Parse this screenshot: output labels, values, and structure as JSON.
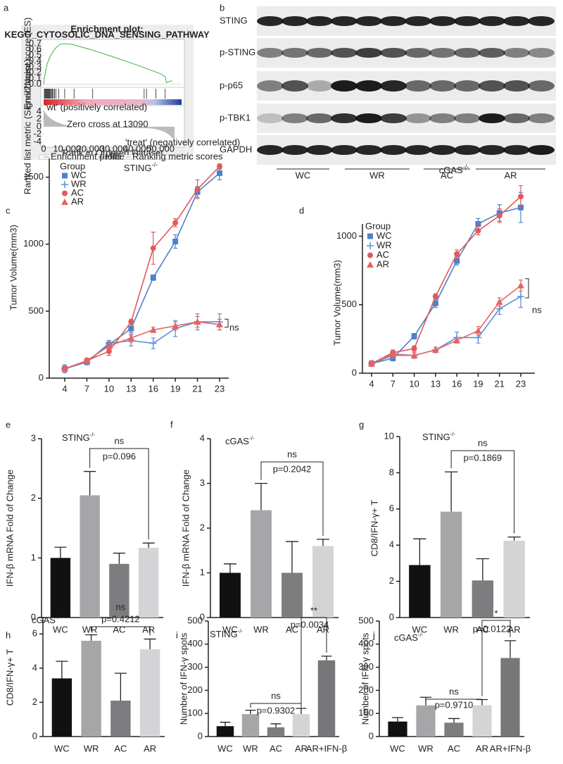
{
  "panel_letters": [
    "a",
    "b",
    "c",
    "d",
    "e",
    "f",
    "g",
    "h",
    "i",
    "j"
  ],
  "blot": {
    "rows": [
      "STING",
      "p-STING",
      "p-p65",
      "p-TBK1",
      "GAPDH"
    ],
    "groups": [
      "WC",
      "WR",
      "AC",
      "AR"
    ]
  },
  "chart_data": [
    {
      "type": "gsea",
      "title": "Enrichment plot:",
      "subtitle": "KEGG_CYTOSOLIC_DNA_SENSING_PATHWAY",
      "ylabel": "Enrichment score (ES)",
      "y2label": "Ranked list metric (Signal2Noise)",
      "xlabel": "Rank in Ordered Dataset",
      "x": [
        0,
        500,
        1500,
        3000,
        5000,
        7000,
        9000,
        12000,
        20000,
        30000,
        40000,
        50000,
        52000,
        52500,
        55000
      ],
      "values": [
        0,
        0.15,
        0.35,
        0.5,
        0.62,
        0.69,
        0.7,
        0.69,
        0.6,
        0.47,
        0.33,
        0.18,
        0.13,
        0.03,
        0.06
      ],
      "color": "#3cb43c",
      "hits": [
        300,
        600,
        900,
        1200,
        1500,
        1800,
        2100,
        2400,
        2700,
        3000,
        3400,
        3800,
        4200,
        4700,
        5200,
        6500,
        9000,
        13000,
        21000,
        43000,
        44000,
        48000,
        52000
      ],
      "xlim": [
        0,
        59000
      ],
      "xticks": [
        0,
        {
          "value": 10000,
          "label": "10,000"
        },
        {
          "value": 20000,
          "label": "20,000"
        },
        {
          "value": 30000,
          "label": "30,000"
        },
        {
          "value": 40000,
          "label": "40,000"
        },
        {
          "value": 50000,
          "label": "50,000"
        }
      ],
      "ylim": [
        -0.03,
        0.75
      ],
      "yticks": [
        {
          "value": 0,
          "label": "0.0"
        },
        0.1,
        0.2,
        0.3,
        0.4,
        0.5,
        0.6,
        0.7
      ],
      "y2lim": [
        -5,
        5
      ],
      "y2ticks": [
        4,
        2,
        0,
        -2,
        -4
      ],
      "annotations": [
        "'wt' (positively correlated)",
        "Zero cross at 13090",
        "'treat' (negatively correlated)"
      ],
      "legend": [
        "Enrichment profile",
        "Hits",
        "Ranking metric scores"
      ]
    },
    {
      "type": "line",
      "title": "STING",
      "title_superscript": "-/-",
      "ylabel": "Tumor Volume(mm3)",
      "legend_title": "Group",
      "categories": [
        "4",
        "7",
        "10",
        "13",
        "16",
        "19",
        "21",
        "23"
      ],
      "series": [
        {
          "name": "WC",
          "color": "#4f81c7",
          "marker": "square",
          "values": [
            70,
            120,
            250,
            370,
            750,
            1020,
            1390,
            1530
          ],
          "errors": [
            20,
            20,
            30,
            30,
            20,
            50,
            40,
            50
          ]
        },
        {
          "name": "WR",
          "color": "#5b8fd6",
          "marker": "plus",
          "values": [
            70,
            120,
            260,
            280,
            260,
            370,
            420,
            420
          ],
          "errors": [
            30,
            20,
            20,
            40,
            40,
            60,
            60,
            60
          ]
        },
        {
          "name": "AC",
          "color": "#e05a5a",
          "marker": "circle",
          "values": [
            70,
            130,
            200,
            420,
            970,
            1160,
            1410,
            1580
          ],
          "errors": [
            20,
            20,
            30,
            20,
            120,
            30,
            70,
            20
          ]
        },
        {
          "name": "AR",
          "color": "#e46464",
          "marker": "triangle",
          "values": [
            70,
            130,
            240,
            300,
            360,
            390,
            420,
            400
          ],
          "errors": [
            20,
            20,
            30,
            30,
            20,
            30,
            40,
            40
          ]
        }
      ],
      "ylim": [
        0,
        1640
      ],
      "yticks": [
        0,
        500,
        1000,
        1500
      ],
      "annotations": [
        "ns"
      ]
    },
    {
      "type": "line",
      "title": "cGAS",
      "title_superscript": "-/-",
      "ylabel": "Tumor Volume(mm3)",
      "legend_title": "Group",
      "categories": [
        "4",
        "7",
        "10",
        "13",
        "16",
        "19",
        "21",
        "23"
      ],
      "series": [
        {
          "name": "WC",
          "color": "#4f81c7",
          "marker": "square",
          "values": [
            70,
            110,
            270,
            510,
            820,
            1090,
            1170,
            1210
          ],
          "errors": [
            20,
            20,
            20,
            30,
            30,
            40,
            60,
            110
          ]
        },
        {
          "name": "WR",
          "color": "#5b8fd6",
          "marker": "plus",
          "values": [
            70,
            130,
            130,
            170,
            260,
            260,
            470,
            560
          ],
          "errors": [
            20,
            20,
            20,
            20,
            40,
            40,
            40,
            80
          ]
        },
        {
          "name": "AC",
          "color": "#e05a5a",
          "marker": "circle",
          "values": [
            70,
            150,
            180,
            560,
            870,
            1040,
            1150,
            1290
          ],
          "errors": [
            20,
            20,
            20,
            20,
            30,
            30,
            50,
            80
          ]
        },
        {
          "name": "AR",
          "color": "#e46464",
          "marker": "triangle",
          "values": [
            70,
            140,
            130,
            170,
            240,
            310,
            520,
            640
          ],
          "errors": [
            20,
            20,
            20,
            20,
            20,
            30,
            30,
            40
          ]
        }
      ],
      "ylim": [
        0,
        1090
      ],
      "yticks": [
        0,
        500,
        1000
      ],
      "annotations": [
        "ns"
      ]
    },
    {
      "type": "bar",
      "title": "STING",
      "title_superscript": "-/-",
      "ylabel": "IFN-β mRNA Fold of Change",
      "categories": [
        "WC",
        "WR",
        "AC",
        "AR"
      ],
      "values": [
        1.0,
        2.05,
        0.9,
        1.17
      ],
      "errors": [
        0.18,
        0.4,
        0.18,
        0.08
      ],
      "colors": [
        "#111111",
        "#a6a6a8",
        "#7d7d80",
        "#d4d4d6"
      ],
      "ylim": [
        0,
        3
      ],
      "yticks": [
        0,
        1,
        2,
        3
      ],
      "annotations": [
        "ns",
        "p=0.096"
      ]
    },
    {
      "type": "bar",
      "title": "cGAS",
      "title_superscript": "-/-",
      "ylabel": "IFN-β mRNA Fold of Change",
      "categories": [
        "WC",
        "WR",
        "AC",
        "AR"
      ],
      "values": [
        1.0,
        2.4,
        1.0,
        1.6
      ],
      "errors": [
        0.2,
        0.6,
        0.7,
        0.15
      ],
      "colors": [
        "#111111",
        "#a6a6a8",
        "#7d7d80",
        "#d4d4d6"
      ],
      "ylim": [
        0,
        4
      ],
      "yticks": [
        0,
        1,
        2,
        3,
        4
      ],
      "annotations": [
        "ns",
        "p=0.2042"
      ]
    },
    {
      "type": "bar",
      "title": "STING",
      "title_superscript": "-/-",
      "ylabel": "CD8/IFN-γ+ T",
      "categories": [
        "WC",
        "WR",
        "AC",
        "AR"
      ],
      "values": [
        2.9,
        5.85,
        2.05,
        4.25
      ],
      "errors": [
        1.45,
        2.2,
        1.2,
        0.2
      ],
      "colors": [
        "#111111",
        "#a6a6a8",
        "#7d7d80",
        "#d4d4d6"
      ],
      "ylim": [
        0,
        10
      ],
      "yticks": [
        0,
        2,
        4,
        6,
        8,
        10
      ],
      "annotations": [
        "ns",
        "p=0.1869"
      ]
    },
    {
      "type": "bar",
      "title": "cGAS",
      "title_superscript": "-/-",
      "ylabel": "CD8/IFN-γ+ T",
      "categories": [
        "WC",
        "WR",
        "AC",
        "AR"
      ],
      "values": [
        3.4,
        5.6,
        2.1,
        5.1
      ],
      "errors": [
        1.0,
        0.35,
        1.6,
        0.6
      ],
      "colors": [
        "#111111",
        "#a6a6a8",
        "#7d7d80",
        "#d4d4d6"
      ],
      "ylim": [
        0,
        7
      ],
      "yticks": [
        0,
        2,
        4,
        6
      ],
      "annotations": [
        "ns",
        "p=0.4212"
      ]
    },
    {
      "type": "bar",
      "title": "STING",
      "title_superscript": "-/-",
      "ylabel": "Number of IFN-γ spots",
      "categories": [
        "WC",
        "WR",
        "AC",
        "AR",
        "AR+IFN-β"
      ],
      "values": [
        45,
        97,
        40,
        97,
        330
      ],
      "errors": [
        17,
        17,
        15,
        25,
        18
      ],
      "colors": [
        "#111111",
        "#a6a6a8",
        "#7d7d80",
        "#d4d4d6",
        "#77777a"
      ],
      "ylim": [
        0,
        500
      ],
      "yticks": [
        0,
        100,
        200,
        300,
        400,
        500
      ],
      "annotations": [
        "ns",
        "p=0.9302",
        "**",
        "p=0.0034"
      ]
    },
    {
      "type": "bar",
      "title": "cGAS",
      "title_superscript": "-/-",
      "ylabel": "Number of IFN-γ spots",
      "categories": [
        "WC",
        "WR",
        "AC",
        "AR",
        "AR+IFN-β"
      ],
      "values": [
        65,
        135,
        60,
        135,
        340
      ],
      "errors": [
        17,
        35,
        18,
        25,
        75
      ],
      "colors": [
        "#111111",
        "#a6a6a8",
        "#7d7d80",
        "#d4d4d6",
        "#77777a"
      ],
      "ylim": [
        0,
        500
      ],
      "yticks": [
        0,
        100,
        200,
        300,
        400,
        500
      ],
      "annotations": [
        "ns",
        "p=0.9710",
        "*",
        "p=0.0122"
      ]
    }
  ]
}
